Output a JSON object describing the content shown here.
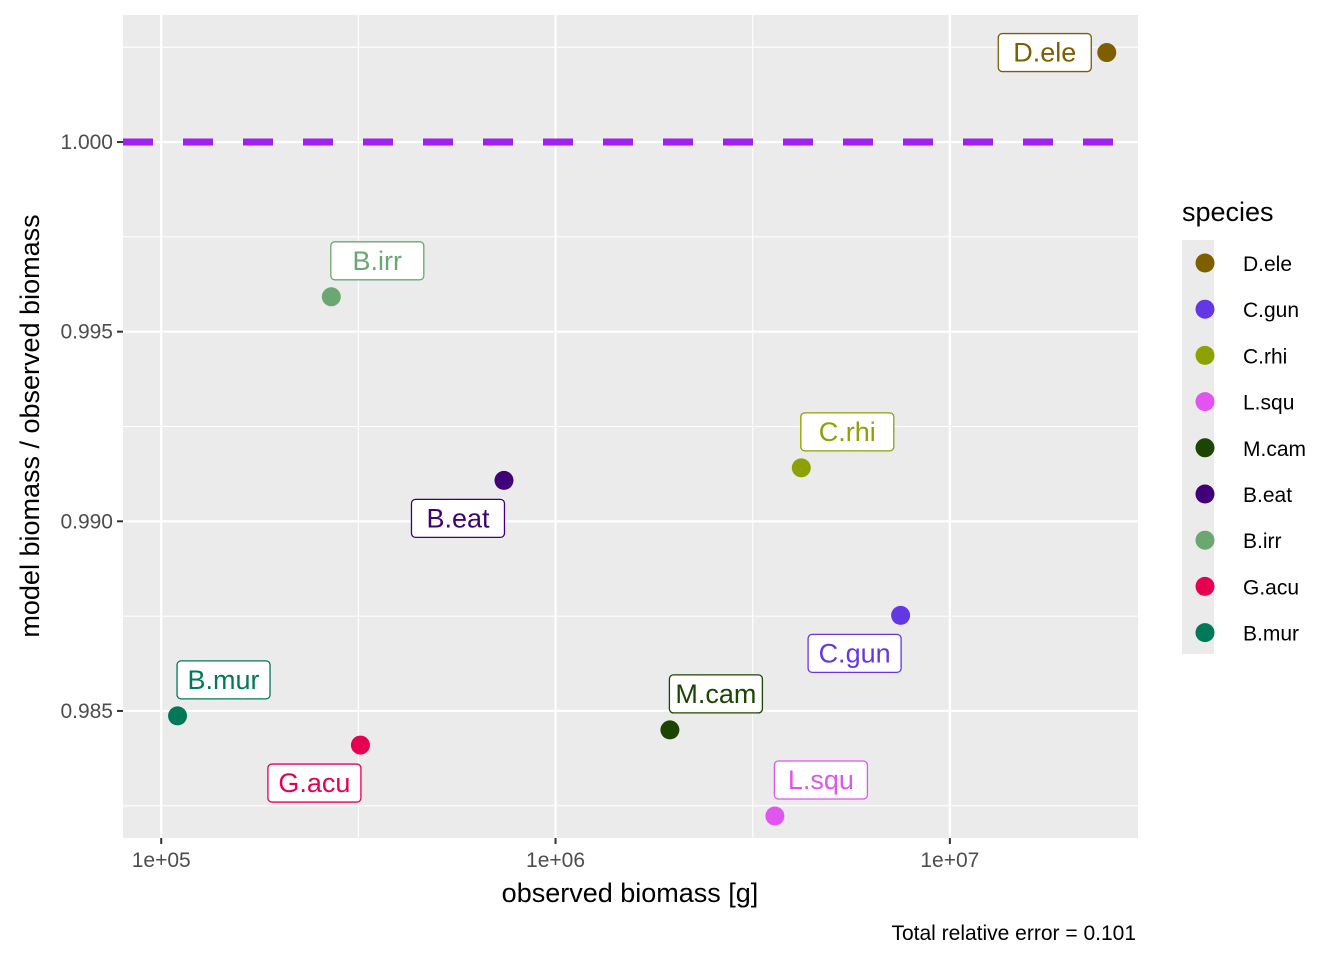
{
  "chart_data": {
    "type": "scatter",
    "title": "",
    "xlabel": "observed biomass [g]",
    "ylabel": "model biomass / observed biomass",
    "caption": "Total relative error = 0.101",
    "x_scale": "log10",
    "xlim": [
      80000,
      30000000
    ],
    "ylim": [
      0.98165,
      1.00335
    ],
    "x_ticks": [
      {
        "value": 100000,
        "label": "1e+05"
      },
      {
        "value": 1000000,
        "label": "1e+06"
      },
      {
        "value": 10000000,
        "label": "1e+07"
      }
    ],
    "y_ticks": [
      {
        "value": 0.985,
        "label": "0.985"
      },
      {
        "value": 0.99,
        "label": "0.990"
      },
      {
        "value": 0.995,
        "label": "0.995"
      },
      {
        "value": 1.0,
        "label": "1.000"
      }
    ],
    "reference_line": {
      "y": 1.0,
      "style": "dashed",
      "color": "#a020f0"
    },
    "grid": true,
    "panel_background": "#ebebeb",
    "legend": {
      "title": "species",
      "position": "right"
    },
    "points": [
      {
        "species": "D.ele",
        "x": 25000000,
        "y": 1.00236,
        "color": "#7f5e00"
      },
      {
        "species": "C.gun",
        "x": 7500000,
        "y": 0.98752,
        "color": "#6437e4"
      },
      {
        "species": "C.rhi",
        "x": 4200000,
        "y": 0.99141,
        "color": "#8da200"
      },
      {
        "species": "L.squ",
        "x": 3600000,
        "y": 0.98223,
        "color": "#e055f0"
      },
      {
        "species": "M.cam",
        "x": 1950000,
        "y": 0.9845,
        "color": "#1b4500"
      },
      {
        "species": "B.eat",
        "x": 740000,
        "y": 0.99108,
        "color": "#410078"
      },
      {
        "species": "B.irr",
        "x": 270000,
        "y": 0.99592,
        "color": "#6ba770"
      },
      {
        "species": "G.acu",
        "x": 320000,
        "y": 0.9841,
        "color": "#e6004f"
      },
      {
        "species": "B.mur",
        "x": 110000,
        "y": 0.98487,
        "color": "#007958"
      }
    ]
  }
}
